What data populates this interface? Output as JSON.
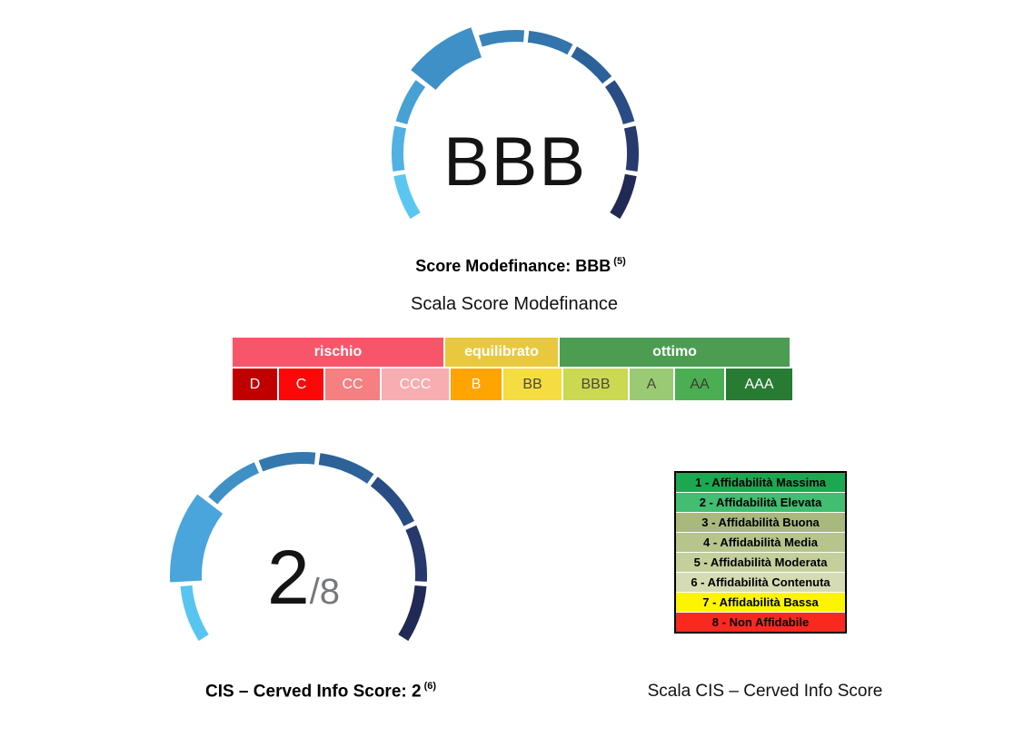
{
  "chart_data": [
    {
      "type": "gauge",
      "title": "Score Modefinance: BBB (5)",
      "value": "BBB",
      "scale_order_from_light_end": [
        "AAA",
        "AA",
        "A",
        "BBB",
        "BB",
        "B",
        "CCC",
        "CC",
        "C",
        "D"
      ],
      "highlighted_segment": "BBB",
      "segments": 10,
      "arc": "circular gauge, gap at bottom, blue ramp light (AAA) to dark navy (D)"
    },
    {
      "type": "gauge",
      "title": "CIS – Cerved Info Score: 2 (6)",
      "value": 2,
      "max": 8,
      "highlighted_segment": 2,
      "segments": 8,
      "arc": "circular gauge, gap at bottom, blue ramp light (1) to dark navy (8)"
    },
    {
      "type": "table",
      "title": "Scala Score Modefinance",
      "groups": [
        {
          "label": "rischio",
          "cells": [
            "D",
            "C",
            "CC",
            "CCC"
          ]
        },
        {
          "label": "equilibrato",
          "cells": [
            "B",
            "BB"
          ]
        },
        {
          "label": "ottimo",
          "cells": [
            "BBB",
            "A",
            "AA",
            "AAA"
          ]
        }
      ]
    },
    {
      "type": "table",
      "title": "Scala CIS – Cerved Info Score",
      "rows": [
        "1 - Affidabilità Massima",
        "2 - Affidabilità Elevata",
        "3 - Affidabilità Buona",
        "4 - Affidabilità Media",
        "5 - Affidabilità Moderata",
        "6 - Affidabilità Contenuta",
        "7 - Affidabilità Bassa",
        "8 - Non Affidabile"
      ]
    }
  ],
  "modefinance": {
    "gauge": {
      "value_label": "BBB",
      "highlight_index": 3,
      "segment_colors": [
        "#5BC6F2",
        "#50B1E2",
        "#47A1D4",
        "#3E90C6",
        "#3A83B9",
        "#3274AB",
        "#2C6199",
        "#2A4C85",
        "#273A6E",
        "#202A55"
      ]
    },
    "caption": "Score Modefinance: BBB",
    "caption_sup": "(5)",
    "scale_title": "Scala Score Modefinance",
    "scale_headers": [
      {
        "label": "rischio",
        "bg": "#F7566A"
      },
      {
        "label": "equilibrato",
        "bg": "#E8C83E"
      },
      {
        "label": "ottimo",
        "bg": "#4C9C52"
      }
    ],
    "scale_cells": [
      {
        "label": "D",
        "bg": "#C00000",
        "fg": "#FFFFFF"
      },
      {
        "label": "C",
        "bg": "#FD0808",
        "fg": "#FFFFFF"
      },
      {
        "label": "CC",
        "bg": "#F57F81",
        "fg": "#FFFFFF"
      },
      {
        "label": "CCC",
        "bg": "#F8ADB0",
        "fg": "#FFFFFF"
      },
      {
        "label": "B",
        "bg": "#FFA400",
        "fg": "#FFFFFF"
      },
      {
        "label": "BB",
        "bg": "#F5DC40",
        "fg": "#4A4A3C"
      },
      {
        "label": "BBB",
        "bg": "#CBD852",
        "fg": "#4A4A3C"
      },
      {
        "label": "A",
        "bg": "#9ACA73",
        "fg": "#4A4A3C"
      },
      {
        "label": "AA",
        "bg": "#4CAE53",
        "fg": "#33432F"
      },
      {
        "label": "AAA",
        "bg": "#277B33",
        "fg": "#FFFFFF"
      }
    ]
  },
  "cis": {
    "gauge": {
      "value": "2",
      "denominator": "/8",
      "highlight_index": 1,
      "segment_colors": [
        "#58C5F1",
        "#49A5DC",
        "#3F90C5",
        "#3478AD",
        "#2C6298",
        "#2A4C84",
        "#26386C",
        "#202A55"
      ]
    },
    "caption": "CIS – Cerved Info Score: 2",
    "caption_sup": "(6)",
    "legend_title": "Scala CIS – Cerved Info Score",
    "legend_rows": [
      {
        "label": "1 - Affidabilità Massima",
        "bg": "#1CA750"
      },
      {
        "label": "2 - Affidabilità Elevata",
        "bg": "#42BD71"
      },
      {
        "label": "3 - Affidabilità Buona",
        "bg": "#A9B87D"
      },
      {
        "label": "4 - Affidabilità Media",
        "bg": "#B7C48B"
      },
      {
        "label": "5 - Affidabilità Moderata",
        "bg": "#C5CF9C"
      },
      {
        "label": "6 - Affidabilità Contenuta",
        "bg": "#D5DCB3"
      },
      {
        "label": "7 - Affidabilità Bassa",
        "bg": "#FDF500"
      },
      {
        "label": "8 - Non Affidabile",
        "bg": "#FA291F"
      }
    ]
  }
}
